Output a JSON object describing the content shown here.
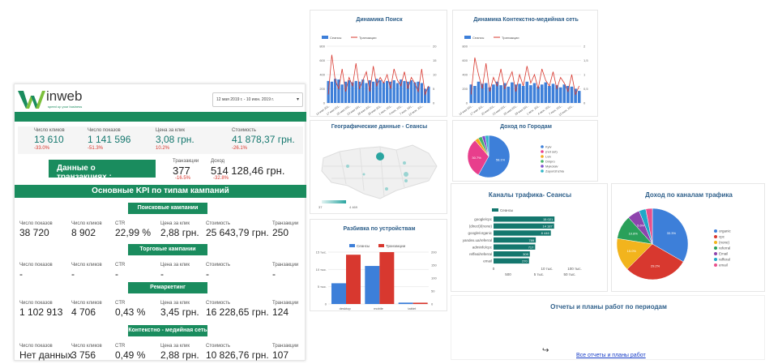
{
  "colors": {
    "green": "#1a8c5e",
    "blue": "#3d7fd9",
    "red": "#d8382f",
    "teal": "#14776e"
  },
  "logo": {
    "name": "inweb",
    "tagline": "speed up your business"
  },
  "date_range": "12 мая 2019 г. - 10 июн. 2019 г.",
  "kpi_top": [
    {
      "label": "Число кликов",
      "value": "13 610",
      "delta": "-33.0%"
    },
    {
      "label": "Число показов",
      "value": "1 141 596",
      "delta": "-51.3%"
    },
    {
      "label": "Цена за клик",
      "value": "3,08 грн.",
      "delta": "10.2%"
    },
    {
      "label": "Стоимость",
      "value": "41 878,37 грн.",
      "delta": "-26.1%"
    }
  ],
  "transactions": {
    "title": "Данные о транзакциях :",
    "count_label": "Транзакции",
    "count": "377",
    "count_delta": "-16.5%",
    "income_label": "Доход",
    "income": "514 128,46 грн.",
    "income_delta": "-32.8%"
  },
  "kpi_section_title": "Основные KPI по типам кампаний",
  "campaigns": [
    {
      "name": "Поисковые кампании",
      "cols": [
        "Число показов",
        "Число кликов",
        "CTR",
        "Цена за клик",
        "Стоимость",
        "Транзакции"
      ],
      "values": [
        "38 720",
        "8 902",
        "22,99 %",
        "2,88 грн.",
        "25 643,79 грн.",
        "250"
      ]
    },
    {
      "name": "Торговые кампании",
      "cols": [
        "Число показов",
        "Число кликов",
        "CTR",
        "Цена за клик",
        "Стоимость",
        "Транзакции"
      ],
      "values": [
        "-",
        "-",
        "-",
        "-",
        "-",
        "-"
      ]
    },
    {
      "name": "Ремаркетинг",
      "cols": [
        "Число показов",
        "Число кликов",
        "CTR",
        "Цена за клик",
        "Стоимость",
        "Транзакции"
      ],
      "values": [
        "1 102 913",
        "4 706",
        "0,43 %",
        "3,45 грн.",
        "16 228,65 грн.",
        "124"
      ]
    },
    {
      "name": "Контекстно - медийная сеть",
      "cols": [
        "Число показов",
        "Число кликов",
        "CTR",
        "Цена за клик",
        "Стоимость",
        "Транзакции"
      ],
      "values": [
        "Нет данных",
        "3 756",
        "0,49 %",
        "2,88 грн.",
        "10 826,76 грн.",
        "107"
      ]
    }
  ],
  "titles": {
    "search": "Динамика Поиск",
    "display": "Динамика Контекстно-медийная сеть",
    "geo": "Географические данные - Сеансы",
    "cities": "Доход по Городам",
    "devices": "Разбивка по устройствам",
    "channels": "Каналы трафика- Сеансы",
    "channel_income": "Доход по каналам трафика",
    "reports": "Отчеты и планы работ по периодам",
    "reports_link": "Все отчеты и планы работ"
  },
  "geo": {
    "min": "37",
    "max": "4 469"
  },
  "chart_data": [
    {
      "type": "bar",
      "name": "search",
      "series": [
        {
          "name": "Сеансы"
        },
        {
          "name": "Транзакции"
        }
      ],
      "sessions": [
        310,
        300,
        340,
        330,
        260,
        300,
        320,
        290,
        310,
        300,
        330,
        280,
        320,
        300,
        340,
        320,
        290,
        310,
        300,
        320,
        280,
        330,
        310,
        300,
        320,
        290,
        300,
        280,
        200,
        230
      ],
      "transactions": [
        3,
        17,
        8,
        5,
        12,
        4,
        9,
        6,
        14,
        5,
        8,
        11,
        4,
        13,
        6,
        9,
        7,
        10,
        5,
        12,
        8,
        6,
        11,
        5,
        9,
        7,
        4,
        12,
        3,
        6
      ],
      "ylim": [
        0,
        800
      ],
      "y2lim": [
        0,
        20
      ],
      "yticks": [
        "800",
        "600",
        "400",
        "200",
        "0"
      ],
      "y2ticks": [
        "20",
        "15",
        "10",
        "5",
        "0"
      ],
      "xlabels": [
        "14 мая 201..",
        "17 мая 201..",
        "20 мая 201..",
        "23 мая 201..",
        "26 мая 201..",
        "29 мая 201..",
        "1 июн. 201..",
        "4 июн. 201..",
        "7 июн. 201..",
        "10 июн. 201.."
      ]
    },
    {
      "type": "bar",
      "name": "display",
      "series": [
        {
          "name": "Сеансы"
        },
        {
          "name": "Транзакции"
        }
      ],
      "sessions": [
        260,
        240,
        300,
        270,
        280,
        220,
        260,
        300,
        250,
        280,
        230,
        290,
        260,
        270,
        240,
        300,
        250,
        280,
        230,
        260,
        290,
        240,
        270,
        250,
        220,
        260,
        240,
        230,
        200,
        170
      ],
      "transactions": [
        0.3,
        1.6,
        1.0,
        0.5,
        1.4,
        0.4,
        0.9,
        0.6,
        1.2,
        0.5,
        0.8,
        1.1,
        0.4,
        1.0,
        0.6,
        1.3,
        0.7,
        1.0,
        0.5,
        1.2,
        0.8,
        0.6,
        1.1,
        0.5,
        0.9,
        0.7,
        0.4,
        1.0,
        0.3,
        0.6
      ],
      "ylim": [
        0,
        800
      ],
      "y2lim": [
        0,
        2
      ],
      "yticks": [
        "800",
        "600",
        "400",
        "200",
        "0"
      ],
      "y2ticks": [
        "2",
        "1,5",
        "1",
        "0,5",
        "0"
      ],
      "xlabels": [
        "14 мая 201..",
        "17 мая 201..",
        "20 мая 201..",
        "23 мая 201..",
        "26 мая 201..",
        "29 мая 201..",
        "1 июн. 201..",
        "4 июн. 201..",
        "7 июн. 201..",
        "10 июн. 201.."
      ]
    },
    {
      "type": "pie",
      "name": "cities",
      "slices": [
        {
          "label": "Kyiv",
          "value": 58.1
        },
        {
          "label": "(not set)",
          "value": 30.7
        },
        {
          "label": "Lviv",
          "value": 3.0
        },
        {
          "label": "Dnipro",
          "value": 3.0
        },
        {
          "label": "Mykolaiv",
          "value": 2.5
        },
        {
          "label": "Zaporizhzhia",
          "value": 2.7
        }
      ],
      "slice_labels": [
        "58.1%",
        "30.7%"
      ]
    },
    {
      "type": "bar",
      "name": "devices",
      "categories": [
        "desktop",
        "mobile",
        "tablet"
      ],
      "series": [
        {
          "name": "Сеансы",
          "values": [
            6000,
            11000,
            400
          ]
        },
        {
          "name": "Транзакции",
          "values": [
            190,
            200,
            5
          ]
        }
      ],
      "yticks": [
        "15 тыс.",
        "10 тыс.",
        "5 тыс.",
        "0"
      ],
      "y2ticks": [
        "200",
        "150",
        "100",
        "50",
        "0"
      ],
      "ylim": [
        0,
        15000
      ],
      "y2lim": [
        0,
        200
      ]
    },
    {
      "type": "bar",
      "name": "channels",
      "orientation": "horizontal",
      "series": [
        {
          "name": "Сеансы"
        }
      ],
      "categories": [
        "google/cpc",
        "(direct)/(none)",
        "google/organic",
        "yandex.ua/referral",
        "adminfo/cpc",
        "reffeal/referral",
        "email"
      ],
      "values": [
        15021,
        14187,
        8446,
        789,
        717,
        309,
        270
      ],
      "value_labels": [
        "15 021",
        "14 187",
        "8 446",
        "789",
        "717",
        "309",
        "270"
      ],
      "xticks_top": [
        "0",
        "10 тыс.",
        "100 тыс."
      ],
      "xticks_bottom": [
        "500",
        "5 тыс.",
        "50 тыс."
      ]
    },
    {
      "type": "pie",
      "name": "channel_income",
      "slices": [
        {
          "label": "organic",
          "value": 33.3
        },
        {
          "label": "cpc",
          "value": 29.2
        },
        {
          "label": "(none)",
          "value": 15.0
        },
        {
          "label": "referral",
          "value": 10.8
        },
        {
          "label": "Email",
          "value": 5.6
        },
        {
          "label": "refferal",
          "value": 3.1
        },
        {
          "label": "email",
          "value": 3.0
        }
      ],
      "slice_labels": [
        "33.3%",
        "29.2%",
        "15.0%",
        "10.8%",
        "5.6%"
      ]
    }
  ]
}
